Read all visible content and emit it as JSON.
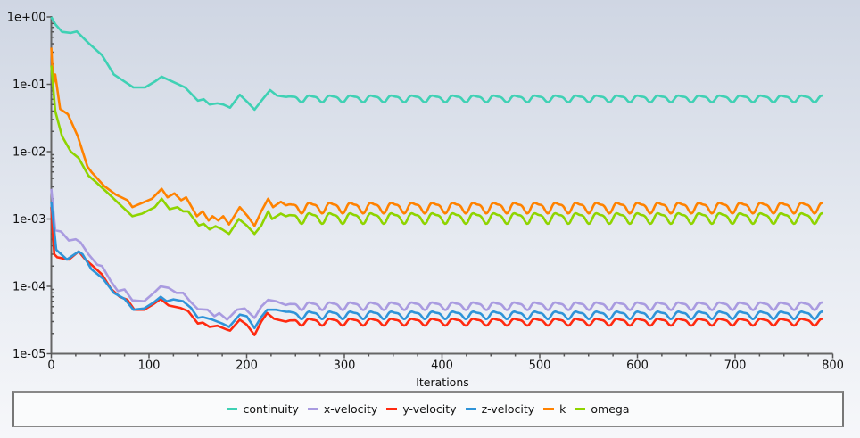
{
  "chart_data": {
    "type": "line",
    "title": "",
    "xlabel": "Iterations",
    "ylabel": "",
    "yscale": "log",
    "xlim": [
      0,
      800
    ],
    "ylim": [
      1e-05,
      1
    ],
    "xticks": [
      "0",
      "100",
      "200",
      "300",
      "400",
      "500",
      "600",
      "700",
      "800"
    ],
    "yticks": [
      "1e+00",
      "1e-01",
      "1e-02",
      "1e-03",
      "1e-04",
      "1e-05"
    ],
    "legend_position": "bottom",
    "series": [
      {
        "name": "continuity",
        "color": "#3fd1b4",
        "points": [
          [
            0,
            1.0
          ],
          [
            4,
            0.78
          ],
          [
            11,
            0.6
          ],
          [
            20,
            0.58
          ],
          [
            26,
            0.61
          ],
          [
            38,
            0.41
          ],
          [
            52,
            0.27
          ],
          [
            64,
            0.14
          ],
          [
            75,
            0.11
          ],
          [
            84,
            0.09
          ],
          [
            96,
            0.09
          ],
          [
            106,
            0.11
          ],
          [
            113,
            0.13
          ],
          [
            124,
            0.11
          ],
          [
            137,
            0.09
          ],
          [
            150,
            0.057
          ],
          [
            156,
            0.06
          ],
          [
            162,
            0.05
          ],
          [
            170,
            0.052
          ],
          [
            176,
            0.05
          ],
          [
            183,
            0.045
          ],
          [
            193,
            0.07
          ],
          [
            201,
            0.054
          ],
          [
            208,
            0.042
          ],
          [
            216,
            0.059
          ],
          [
            224,
            0.082
          ],
          [
            231,
            0.068
          ],
          [
            240,
            0.065
          ]
        ],
        "tail": {
          "from": 240,
          "to": 790,
          "level": 0.062,
          "amplitude_decades": 0.045,
          "period": 21
        }
      },
      {
        "name": "x-velocity",
        "color": "#a99be0",
        "points": [
          [
            0,
            0.0028
          ],
          [
            4,
            0.00068
          ],
          [
            10,
            0.00065
          ],
          [
            18,
            0.00048
          ],
          [
            25,
            0.0005
          ],
          [
            30,
            0.00045
          ],
          [
            38,
            0.0003
          ],
          [
            47,
            0.00021
          ],
          [
            52,
            0.0002
          ],
          [
            61,
            0.000119
          ],
          [
            68,
            8.5e-05
          ],
          [
            75,
            9e-05
          ],
          [
            83,
            6.2e-05
          ],
          [
            95,
            6e-05
          ],
          [
            105,
            8e-05
          ],
          [
            112,
            0.0001
          ],
          [
            120,
            9.5e-05
          ],
          [
            128,
            8e-05
          ],
          [
            135,
            8e-05
          ],
          [
            142,
            6e-05
          ],
          [
            150,
            4.6e-05
          ],
          [
            160,
            4.5e-05
          ],
          [
            167,
            3.6e-05
          ],
          [
            172,
            4e-05
          ],
          [
            180,
            3.2e-05
          ],
          [
            190,
            4.5e-05
          ],
          [
            198,
            4.7e-05
          ],
          [
            208,
            3.4e-05
          ],
          [
            215,
            5e-05
          ],
          [
            222,
            6.3e-05
          ],
          [
            230,
            6e-05
          ],
          [
            240,
            5.3e-05
          ]
        ],
        "tail": {
          "from": 240,
          "to": 790,
          "level": 5.2e-05,
          "amplitude_decades": 0.05,
          "period": 21
        }
      },
      {
        "name": "y-velocity",
        "color": "#ff2a10",
        "points": [
          [
            0,
            0.0015
          ],
          [
            3,
            0.0003
          ],
          [
            6,
            0.00027
          ],
          [
            12,
            0.00026
          ],
          [
            18,
            0.00025
          ],
          [
            28,
            0.00033
          ],
          [
            35,
            0.00025
          ],
          [
            41,
            0.00021
          ],
          [
            52,
            0.00015
          ],
          [
            61,
            9.2e-05
          ],
          [
            70,
            7e-05
          ],
          [
            78,
            6.3e-05
          ],
          [
            85,
            4.5e-05
          ],
          [
            95,
            4.5e-05
          ],
          [
            105,
            5.5e-05
          ],
          [
            112,
            6.5e-05
          ],
          [
            120,
            5.2e-05
          ],
          [
            132,
            4.8e-05
          ],
          [
            140,
            4.3e-05
          ],
          [
            150,
            2.8e-05
          ],
          [
            155,
            2.9e-05
          ],
          [
            162,
            2.5e-05
          ],
          [
            170,
            2.6e-05
          ],
          [
            179,
            2.3e-05
          ],
          [
            183,
            2.2e-05
          ],
          [
            193,
            3.2e-05
          ],
          [
            200,
            2.7e-05
          ],
          [
            208,
            1.89e-05
          ],
          [
            215,
            3e-05
          ],
          [
            221,
            4e-05
          ],
          [
            228,
            3.3e-05
          ],
          [
            240,
            3e-05
          ]
        ],
        "tail": {
          "from": 240,
          "to": 790,
          "level": 3e-05,
          "amplitude_decades": 0.045,
          "period": 21
        }
      },
      {
        "name": "z-velocity",
        "color": "#2f94d8",
        "points": [
          [
            0,
            0.0018
          ],
          [
            5,
            0.00035
          ],
          [
            10,
            0.0003
          ],
          [
            16,
            0.00025
          ],
          [
            28,
            0.00033
          ],
          [
            32,
            0.0003
          ],
          [
            41,
            0.00018
          ],
          [
            53,
            0.00013
          ],
          [
            64,
            8e-05
          ],
          [
            75,
            6.5e-05
          ],
          [
            84,
            4.5e-05
          ],
          [
            95,
            4.7e-05
          ],
          [
            105,
            5.8e-05
          ],
          [
            112,
            7e-05
          ],
          [
            118,
            6e-05
          ],
          [
            125,
            6.4e-05
          ],
          [
            135,
            6e-05
          ],
          [
            143,
            4.8e-05
          ],
          [
            150,
            3.4e-05
          ],
          [
            155,
            3.5e-05
          ],
          [
            165,
            3.2e-05
          ],
          [
            175,
            2.8e-05
          ],
          [
            182,
            2.5e-05
          ],
          [
            193,
            3.8e-05
          ],
          [
            200,
            3.6e-05
          ],
          [
            208,
            2.4e-05
          ],
          [
            215,
            3.5e-05
          ],
          [
            221,
            4.5e-05
          ],
          [
            230,
            4.5e-05
          ],
          [
            240,
            4.2e-05
          ]
        ],
        "tail": {
          "from": 240,
          "to": 790,
          "level": 3.8e-05,
          "amplitude_decades": 0.05,
          "period": 21
        }
      },
      {
        "name": "k",
        "color": "#ff8200",
        "points": [
          [
            0,
            0.35
          ],
          [
            2,
            0.1
          ],
          [
            4,
            0.14
          ],
          [
            9,
            0.043
          ],
          [
            17,
            0.036
          ],
          [
            27,
            0.017
          ],
          [
            37,
            0.006
          ],
          [
            41,
            0.005
          ],
          [
            54,
            0.0031
          ],
          [
            66,
            0.0023
          ],
          [
            78,
            0.0019
          ],
          [
            83,
            0.0015
          ],
          [
            103,
            0.002
          ],
          [
            113,
            0.0028
          ],
          [
            119,
            0.0021
          ],
          [
            126,
            0.0024
          ],
          [
            133,
            0.0019
          ],
          [
            138,
            0.0021
          ],
          [
            149,
            0.0011
          ],
          [
            155,
            0.0013
          ],
          [
            161,
            0.00095
          ],
          [
            165,
            0.0011
          ],
          [
            171,
            0.00095
          ],
          [
            176,
            0.0011
          ],
          [
            182,
            0.00083
          ],
          [
            193,
            0.0015
          ],
          [
            201,
            0.0011
          ],
          [
            208,
            0.00079
          ],
          [
            215,
            0.0013
          ],
          [
            222,
            0.002
          ],
          [
            227,
            0.0015
          ],
          [
            235,
            0.0018
          ],
          [
            240,
            0.0016
          ]
        ],
        "tail": {
          "from": 240,
          "to": 790,
          "level": 0.0015,
          "amplitude_decades": 0.07,
          "period": 21
        }
      },
      {
        "name": "omega",
        "color": "#8fd400",
        "points": [
          [
            0,
            0.19
          ],
          [
            4,
            0.04
          ],
          [
            11,
            0.017
          ],
          [
            20,
            0.01
          ],
          [
            28,
            0.008
          ],
          [
            38,
            0.0044
          ],
          [
            45,
            0.0036
          ],
          [
            57,
            0.0025
          ],
          [
            69,
            0.0017
          ],
          [
            83,
            0.0011
          ],
          [
            93,
            0.0012
          ],
          [
            106,
            0.0015
          ],
          [
            113,
            0.002
          ],
          [
            121,
            0.0014
          ],
          [
            129,
            0.0015
          ],
          [
            135,
            0.0013
          ],
          [
            140,
            0.0013
          ],
          [
            151,
            0.0008
          ],
          [
            156,
            0.00085
          ],
          [
            162,
            0.0007
          ],
          [
            168,
            0.00078
          ],
          [
            175,
            0.0007
          ],
          [
            182,
            0.0006
          ],
          [
            192,
            0.001
          ],
          [
            200,
            0.0008
          ],
          [
            208,
            0.0006
          ],
          [
            215,
            0.0008
          ],
          [
            222,
            0.0013
          ],
          [
            226,
            0.001
          ],
          [
            235,
            0.0012
          ],
          [
            240,
            0.0011
          ]
        ],
        "tail": {
          "from": 240,
          "to": 790,
          "level": 0.00105,
          "amplitude_decades": 0.07,
          "period": 21
        }
      }
    ]
  }
}
